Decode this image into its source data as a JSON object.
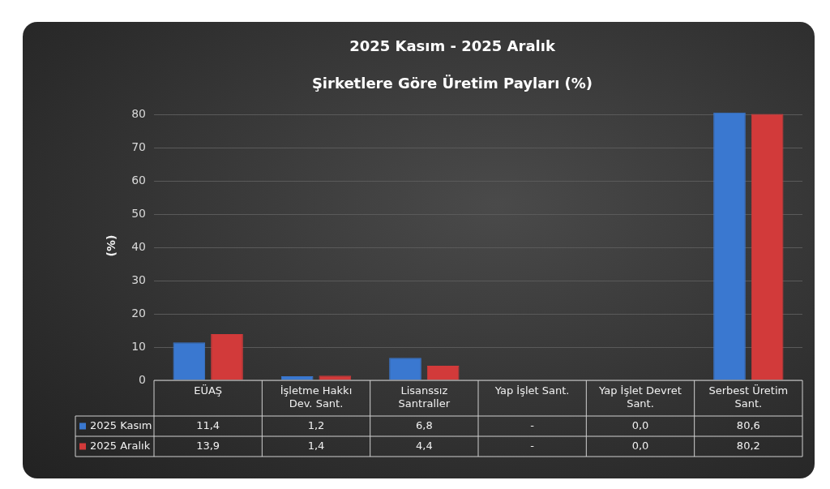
{
  "chart_data": {
    "type": "bar",
    "title": "2025 Kasım - 2025 Aralık",
    "subtitle": "Şirketlere Göre Üretim Payları (%)",
    "ylabel": "(%)",
    "categories": [
      "EÜAŞ",
      "İşletme Hakkı Dev. Sant.",
      "Lisanssız Santraller",
      "Yap İşlet Sant.",
      "Yap İşlet Devret Sant.",
      "Serbest Üretim Sant."
    ],
    "series": [
      {
        "name": "2025 Kasım",
        "color": "#3a78d0",
        "values": [
          11.4,
          1.2,
          6.8,
          null,
          0.0,
          80.6
        ],
        "value_labels": [
          "11,4",
          "1,2",
          "6,8",
          "-",
          "0,0",
          "80,6"
        ]
      },
      {
        "name": "2025 Aralık",
        "color": "#d23a3a",
        "values": [
          13.9,
          1.4,
          4.4,
          null,
          0.0,
          80.2
        ],
        "value_labels": [
          "13,9",
          "1,4",
          "4,4",
          "-",
          "0,0",
          "80,2"
        ]
      }
    ],
    "ylim": [
      0,
      81
    ],
    "yticks": [
      0,
      10,
      20,
      30,
      40,
      50,
      60,
      70,
      80
    ],
    "grid": "y",
    "legend": "bottom"
  }
}
